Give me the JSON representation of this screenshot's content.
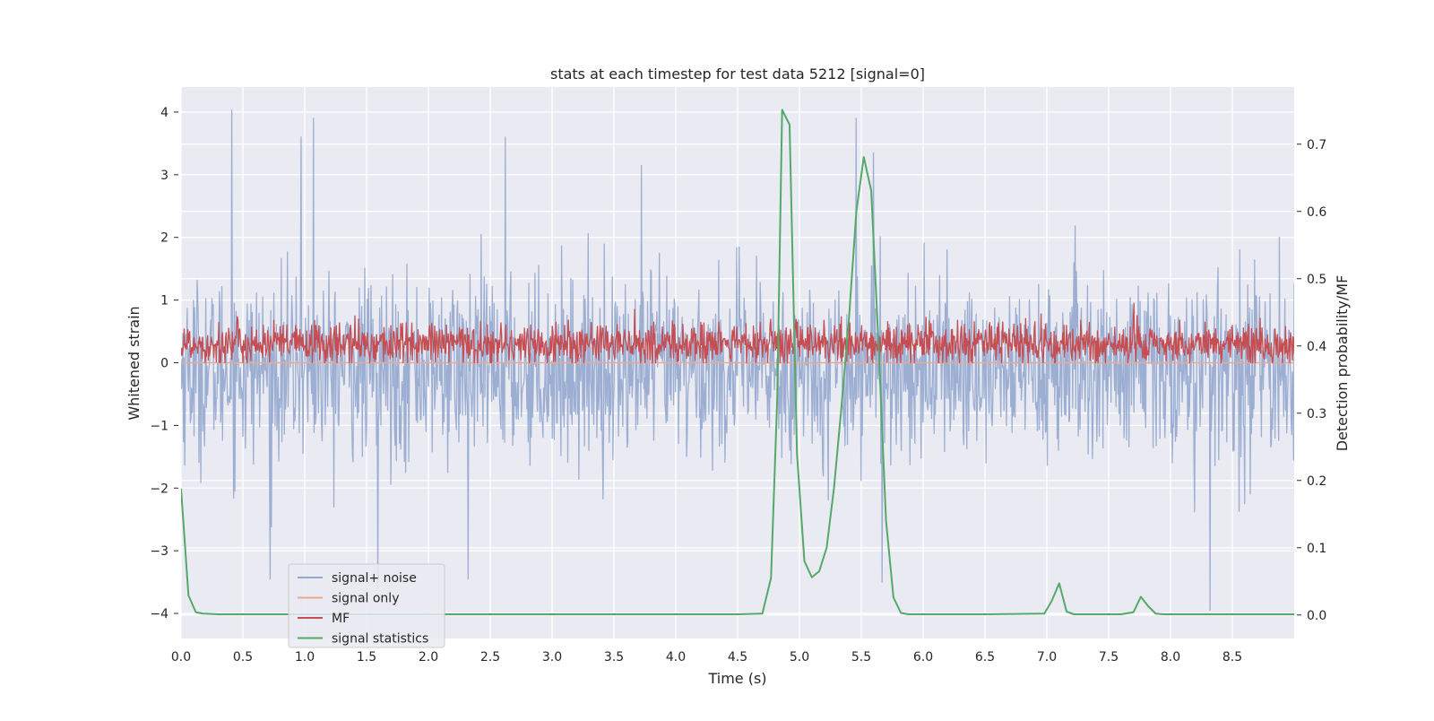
{
  "chart_data": {
    "type": "line",
    "title": "stats at each timestep for test data 5212 [signal=0]",
    "xlabel": "Time (s)",
    "ylabel": "Whitened strain",
    "ylabel_right": "Detection probability/MF",
    "xlim": [
      0.0,
      9.0
    ],
    "ylim": [
      -4.4,
      4.4
    ],
    "ylim_right": [
      -0.035,
      0.785
    ],
    "x_ticks": [
      "0.0",
      "0.5",
      "1.0",
      "1.5",
      "2.0",
      "2.5",
      "3.0",
      "3.5",
      "4.0",
      "4.5",
      "5.0",
      "5.5",
      "6.0",
      "6.5",
      "7.0",
      "7.5",
      "8.0",
      "8.5"
    ],
    "y_ticks": [
      "4",
      "3",
      "2",
      "1",
      "0",
      "−1",
      "−2",
      "−3",
      "−4"
    ],
    "y_right_ticks": [
      "0.7",
      "0.6",
      "0.5",
      "0.4",
      "0.3",
      "0.2",
      "0.1",
      "0.0"
    ],
    "grid": true,
    "background": "#eaeaf2",
    "legend_position": "lower-left",
    "series": [
      {
        "name": "signal+ noise",
        "axis": "left",
        "color": "#94a8cf",
        "noise_band": {
          "mean": -0.1,
          "sigma": 0.72,
          "min": -3.9,
          "max": 4.05,
          "n_samples": 1800
        },
        "spikes": [
          {
            "x": 0.41,
            "y": 4.03
          },
          {
            "x": 0.97,
            "y": 3.6
          },
          {
            "x": 1.07,
            "y": 3.9
          },
          {
            "x": 2.62,
            "y": 3.6
          },
          {
            "x": 3.72,
            "y": 3.15
          },
          {
            "x": 5.46,
            "y": 3.9
          },
          {
            "x": 5.6,
            "y": 3.35
          },
          {
            "x": 0.72,
            "y": -3.45
          },
          {
            "x": 1.59,
            "y": -3.6
          },
          {
            "x": 2.32,
            "y": -3.45
          },
          {
            "x": 5.67,
            "y": -3.5
          },
          {
            "x": 8.32,
            "y": -3.95
          }
        ]
      },
      {
        "name": "signal only",
        "axis": "left",
        "color": "#e8a990",
        "x": [
          0.0,
          9.0
        ],
        "y": [
          0.0,
          0.0
        ]
      },
      {
        "name": "MF",
        "axis": "left",
        "color": "#c44e52",
        "noise_band": {
          "mean": 0.3,
          "sigma": 0.17,
          "min": 0.0,
          "max": 0.95,
          "n_samples": 1800
        }
      },
      {
        "name": "signal statistics",
        "axis": "right",
        "color": "#55a868",
        "x": [
          0.0,
          0.06,
          0.12,
          0.18,
          0.3,
          0.5,
          1.0,
          2.0,
          3.0,
          4.0,
          4.5,
          4.7,
          4.77,
          4.82,
          4.86,
          4.92,
          4.98,
          5.04,
          5.1,
          5.16,
          5.22,
          5.28,
          5.34,
          5.4,
          5.46,
          5.52,
          5.58,
          5.64,
          5.7,
          5.76,
          5.82,
          5.88,
          6.0,
          6.5,
          6.98,
          7.04,
          7.1,
          7.16,
          7.22,
          7.3,
          7.6,
          7.7,
          7.76,
          7.82,
          7.88,
          7.94,
          8.0,
          8.3,
          8.6,
          9.0
        ],
        "y": [
          0.188,
          0.029,
          0.004,
          0.002,
          0.001,
          0.001,
          0.001,
          0.001,
          0.001,
          0.001,
          0.001,
          0.002,
          0.055,
          0.32,
          0.751,
          0.729,
          0.24,
          0.08,
          0.056,
          0.065,
          0.1,
          0.19,
          0.31,
          0.44,
          0.6,
          0.681,
          0.631,
          0.4,
          0.14,
          0.026,
          0.003,
          0.001,
          0.001,
          0.001,
          0.002,
          0.021,
          0.047,
          0.005,
          0.001,
          0.001,
          0.001,
          0.004,
          0.027,
          0.013,
          0.002,
          0.001,
          0.001,
          0.001,
          0.001,
          0.001
        ]
      }
    ]
  }
}
